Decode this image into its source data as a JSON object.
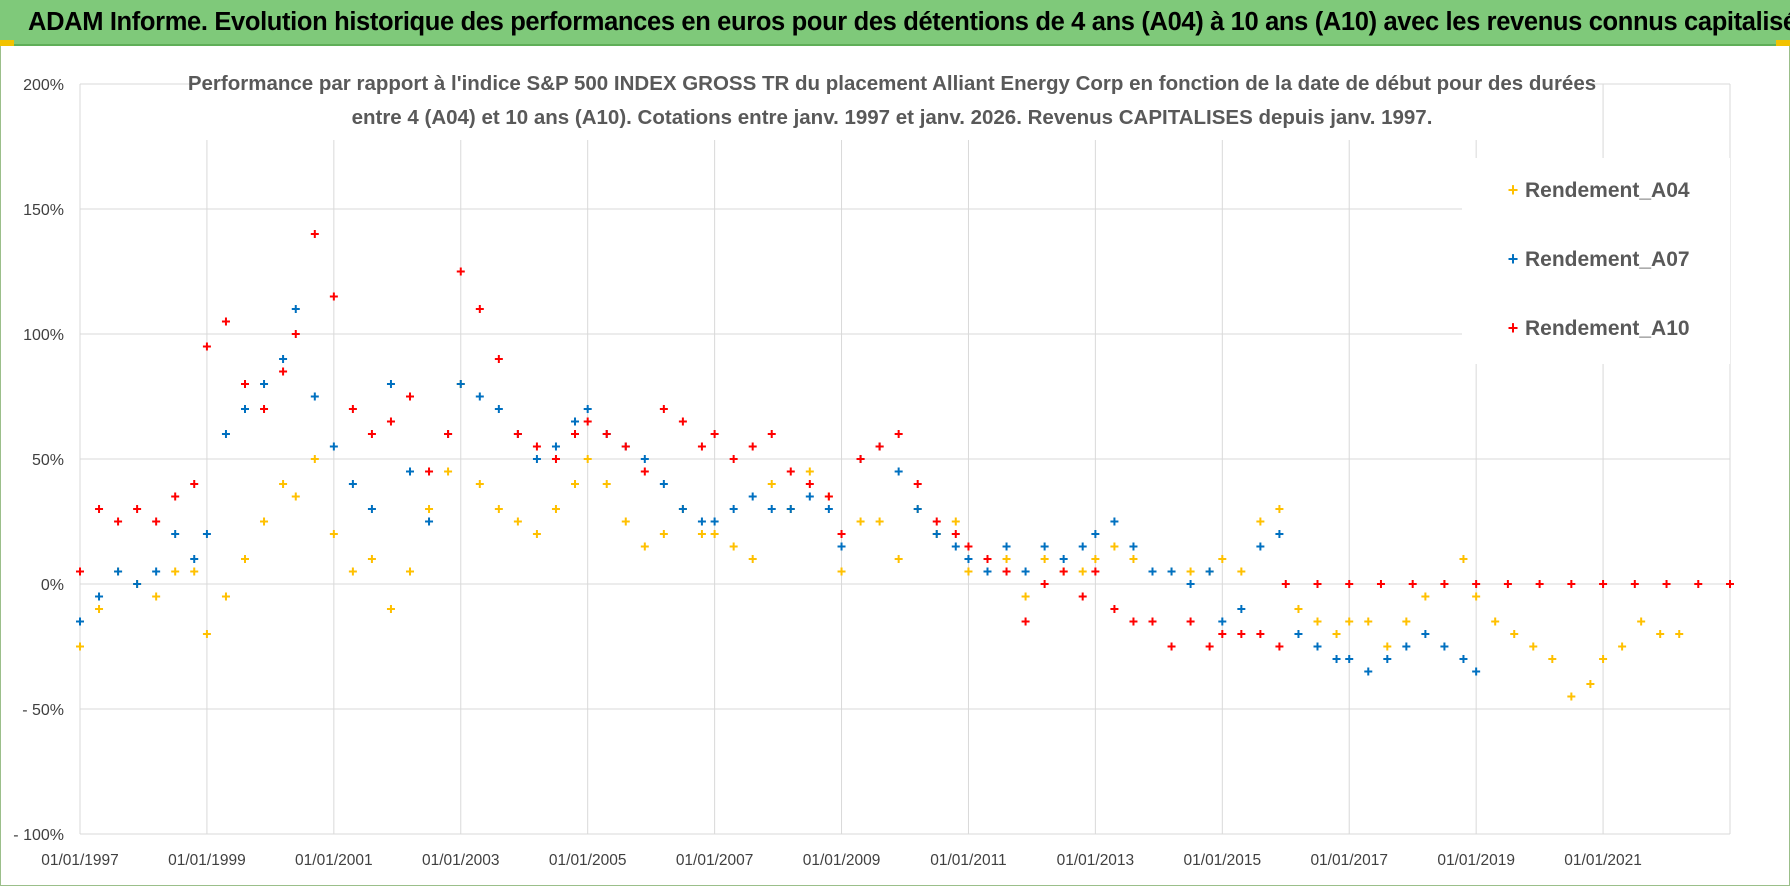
{
  "header": {
    "title": "ADAM Informe. Evolution historique des performances en euros pour des détentions de 4 ans (A04) à 10 ans (A10) avec les revenus connus capitalisés"
  },
  "colors": {
    "banner": "#7fc97a",
    "grid": "#d9d9d9",
    "A04": "#ffc000",
    "A07": "#0070c0",
    "A10": "#ff0000"
  },
  "chart_data": {
    "type": "scatter",
    "title_lines": [
      "Performance par rapport à l'indice S&P 500 INDEX GROSS TR  du placement Alliant Energy Corp en fonction de la date de début pour des durées",
      "entre 4 (A04) et 10 ans (A10).  Cotations entre janv. 1997 et janv. 2026. Revenus CAPITALISES  depuis janv. 1997."
    ],
    "xlabel": "",
    "ylabel": "",
    "xlim": [
      1997.0,
      2023.0
    ],
    "ylim": [
      -100,
      200
    ],
    "y_ticks": [
      {
        "value": 200,
        "label": "200%"
      },
      {
        "value": 150,
        "label": "150%"
      },
      {
        "value": 100,
        "label": "100%"
      },
      {
        "value": 50,
        "label": "50%"
      },
      {
        "value": 0,
        "label": "0%"
      },
      {
        "value": -50,
        "label": "- 50%"
      },
      {
        "value": -100,
        "label": "- 100%"
      }
    ],
    "x_ticks": [
      {
        "value": 1997,
        "label": "01/01/1997"
      },
      {
        "value": 1999,
        "label": "01/01/1999"
      },
      {
        "value": 2001,
        "label": "01/01/2001"
      },
      {
        "value": 2003,
        "label": "01/01/2003"
      },
      {
        "value": 2005,
        "label": "01/01/2005"
      },
      {
        "value": 2007,
        "label": "01/01/2007"
      },
      {
        "value": 2009,
        "label": "01/01/2009"
      },
      {
        "value": 2011,
        "label": "01/01/2011"
      },
      {
        "value": 2013,
        "label": "01/01/2013"
      },
      {
        "value": 2015,
        "label": "01/01/2015"
      },
      {
        "value": 2017,
        "label": "01/01/2017"
      },
      {
        "value": 2019,
        "label": "01/01/2019"
      },
      {
        "value": 2021,
        "label": "01/01/2021"
      }
    ],
    "legend_position": "right",
    "series": [
      {
        "name": "Rendement_A04",
        "color": "#ffc000",
        "x": [
          1997.0,
          1997.3,
          1997.6,
          1997.9,
          1998.2,
          1998.5,
          1998.8,
          1999.0,
          1999.3,
          1999.6,
          1999.9,
          2000.2,
          2000.4,
          2000.7,
          2001.0,
          2001.3,
          2001.6,
          2001.9,
          2002.2,
          2002.5,
          2002.8,
          2003.0,
          2003.3,
          2003.6,
          2003.9,
          2004.2,
          2004.5,
          2004.8,
          2005.0,
          2005.3,
          2005.6,
          2005.9,
          2006.2,
          2006.5,
          2006.8,
          2007.0,
          2007.3,
          2007.6,
          2007.9,
          2008.2,
          2008.5,
          2008.8,
          2009.0,
          2009.3,
          2009.6,
          2009.9,
          2010.2,
          2010.5,
          2010.8,
          2011.0,
          2011.3,
          2011.6,
          2011.9,
          2012.2,
          2012.5,
          2012.8,
          2013.0,
          2013.3,
          2013.6,
          2013.9,
          2014.2,
          2014.5,
          2014.8,
          2015.0,
          2015.3,
          2015.6,
          2015.9,
          2016.2,
          2016.5,
          2016.8,
          2017.0,
          2017.3,
          2017.6,
          2017.9,
          2018.2,
          2018.5,
          2018.8,
          2019.0,
          2019.3,
          2019.6,
          2019.9,
          2020.2,
          2020.5,
          2020.8,
          2021.0,
          2021.3,
          2021.6,
          2021.9,
          2022.2
        ],
        "y": [
          -25,
          -10,
          5,
          0,
          -5,
          5,
          5,
          -20,
          -5,
          10,
          25,
          40,
          35,
          50,
          20,
          5,
          10,
          -10,
          5,
          30,
          45,
          80,
          40,
          30,
          25,
          20,
          30,
          40,
          50,
          40,
          25,
          15,
          20,
          30,
          20,
          20,
          15,
          10,
          40,
          30,
          45,
          35,
          5,
          25,
          25,
          10,
          30,
          20,
          25,
          5,
          10,
          10,
          -5,
          10,
          5,
          5,
          10,
          15,
          10,
          5,
          5,
          5,
          5,
          10,
          5,
          25,
          30,
          -10,
          -15,
          -20,
          -15,
          -15,
          -25,
          -15,
          -5,
          0,
          10,
          -5,
          -15,
          -20,
          -25,
          -30,
          -45,
          -40,
          -30,
          -25,
          -15,
          -20,
          -20
        ]
      },
      {
        "name": "Rendement_A07",
        "color": "#0070c0",
        "x": [
          1997.0,
          1997.3,
          1997.6,
          1997.9,
          1998.2,
          1998.5,
          1998.8,
          1999.0,
          1999.3,
          1999.6,
          1999.9,
          2000.2,
          2000.4,
          2000.7,
          2001.0,
          2001.3,
          2001.6,
          2001.9,
          2002.2,
          2002.5,
          2002.8,
          2003.0,
          2003.3,
          2003.6,
          2003.9,
          2004.2,
          2004.5,
          2004.8,
          2005.0,
          2005.3,
          2005.6,
          2005.9,
          2006.2,
          2006.5,
          2006.8,
          2007.0,
          2007.3,
          2007.6,
          2007.9,
          2008.2,
          2008.5,
          2008.8,
          2009.0,
          2009.3,
          2009.6,
          2009.9,
          2010.2,
          2010.5,
          2010.8,
          2011.0,
          2011.3,
          2011.6,
          2011.9,
          2012.2,
          2012.5,
          2012.8,
          2013.0,
          2013.3,
          2013.6,
          2013.9,
          2014.2,
          2014.5,
          2014.8,
          2015.0,
          2015.3,
          2015.6,
          2015.9,
          2016.2,
          2016.5,
          2016.8,
          2017.0,
          2017.3,
          2017.6,
          2017.9,
          2018.2,
          2018.5,
          2018.8,
          2019.0
        ],
        "y": [
          -15,
          -5,
          5,
          0,
          5,
          20,
          10,
          20,
          60,
          70,
          80,
          90,
          110,
          75,
          55,
          40,
          30,
          80,
          45,
          25,
          60,
          80,
          75,
          70,
          60,
          50,
          55,
          65,
          70,
          60,
          55,
          50,
          40,
          30,
          25,
          25,
          30,
          35,
          30,
          30,
          35,
          30,
          15,
          50,
          55,
          45,
          30,
          20,
          15,
          10,
          5,
          15,
          5,
          15,
          10,
          15,
          20,
          25,
          15,
          5,
          5,
          0,
          5,
          -15,
          -10,
          15,
          20,
          -20,
          -25,
          -30,
          -30,
          -35,
          -30,
          -25,
          -20,
          -25,
          -30,
          -35
        ]
      },
      {
        "name": "Rendement_A10",
        "color": "#ff0000",
        "x": [
          1997.0,
          1997.3,
          1997.6,
          1997.9,
          1998.2,
          1998.5,
          1998.8,
          1999.0,
          1999.3,
          1999.6,
          1999.9,
          2000.2,
          2000.4,
          2000.7,
          2001.0,
          2001.3,
          2001.6,
          2001.9,
          2002.2,
          2002.5,
          2002.8,
          2003.0,
          2003.3,
          2003.6,
          2003.9,
          2004.2,
          2004.5,
          2004.8,
          2005.0,
          2005.3,
          2005.6,
          2005.9,
          2006.2,
          2006.5,
          2006.8,
          2007.0,
          2007.3,
          2007.6,
          2007.9,
          2008.2,
          2008.5,
          2008.8,
          2009.0,
          2009.3,
          2009.6,
          2009.9,
          2010.2,
          2010.5,
          2010.8,
          2011.0,
          2011.3,
          2011.6,
          2011.9,
          2012.2,
          2012.5,
          2012.8,
          2013.0,
          2013.3,
          2013.6,
          2013.9,
          2014.2,
          2014.5,
          2014.8,
          2015.0,
          2015.3,
          2015.6,
          2015.9,
          2016.0,
          2016.5,
          2017.0,
          2017.5,
          2018.0,
          2018.5,
          2019.0,
          2019.5,
          2020.0,
          2020.5,
          2021.0,
          2021.5,
          2022.0,
          2022.5,
          2023.0
        ],
        "y": [
          5,
          30,
          25,
          30,
          25,
          35,
          40,
          95,
          105,
          80,
          70,
          85,
          100,
          140,
          115,
          70,
          60,
          65,
          75,
          45,
          60,
          125,
          110,
          90,
          60,
          55,
          50,
          60,
          65,
          60,
          55,
          45,
          70,
          65,
          55,
          60,
          50,
          55,
          60,
          45,
          40,
          35,
          20,
          50,
          55,
          60,
          40,
          25,
          20,
          15,
          10,
          5,
          -15,
          0,
          5,
          -5,
          5,
          -10,
          -15,
          -15,
          -25,
          -15,
          -25,
          -20,
          -20,
          -20,
          -25,
          0,
          0,
          0,
          0,
          0,
          0,
          0,
          0,
          0,
          0,
          0,
          0,
          0,
          0,
          0
        ]
      }
    ]
  }
}
